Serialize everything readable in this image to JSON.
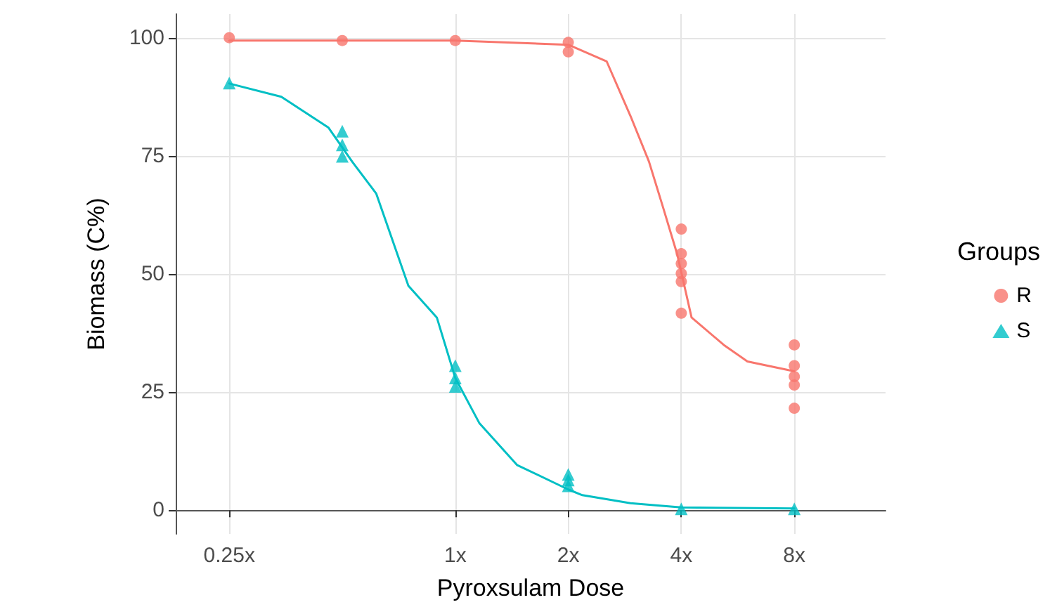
{
  "chart_data": {
    "type": "scatter",
    "xlabel": "Pyroxsulam Dose",
    "ylabel": "Biomass (C%)",
    "legend_title": "Groups",
    "legend": "right",
    "grid": true,
    "log": "x",
    "xlim": [
      0.18,
      14
    ],
    "xticks": [
      {
        "value": 0.25,
        "label": "0.25x"
      },
      {
        "value": 1,
        "label": "1x"
      },
      {
        "value": 2,
        "label": "2x"
      },
      {
        "value": 4,
        "label": "4x"
      },
      {
        "value": 8,
        "label": "8x"
      }
    ],
    "ylim": [
      -5,
      105
    ],
    "yticks": [
      0,
      25,
      50,
      75,
      100
    ],
    "series": [
      {
        "name": "R",
        "color": "#f8766d",
        "marker": "circle",
        "x": [
          0.25,
          0.5,
          1,
          2,
          2,
          4,
          4,
          4,
          4,
          4,
          4,
          8,
          8,
          8,
          8,
          8
        ],
        "values": [
          100,
          99.4,
          99.4,
          99,
          97,
          59.5,
          54.3,
          52.2,
          50.1,
          48.4,
          41.7,
          35,
          30.6,
          28.3,
          26.5,
          21.6
        ]
      },
      {
        "name": "S",
        "color": "#00bfc4",
        "marker": "triangle",
        "x": [
          0.25,
          0.5,
          0.5,
          0.5,
          1,
          1,
          1,
          2,
          2,
          2,
          4,
          8
        ],
        "values": [
          90.4,
          80.2,
          77.3,
          74.9,
          30.6,
          28,
          26.2,
          7.6,
          6.4,
          5.2,
          0.3,
          0.3
        ]
      },
      {
        "type": "line",
        "color": "#f8766d",
        "marker": "none",
        "x": [
          0.25,
          0.5,
          1,
          2,
          2.53,
          2.93,
          3.28,
          3.58,
          3.9,
          4.26,
          5.19,
          6,
          8
        ],
        "values": [
          99.4,
          99.4,
          99.4,
          98.5,
          95,
          83.4,
          73.8,
          64,
          54.2,
          40.8,
          35,
          31.5,
          29.4
        ]
      },
      {
        "type": "line",
        "color": "#00bfc4",
        "marker": "none",
        "x": [
          0.25,
          0.344,
          0.459,
          0.531,
          0.616,
          0.75,
          0.893,
          1,
          1.16,
          1.46,
          2,
          2.18,
          2.93,
          4,
          8
        ],
        "values": [
          90.3,
          87.5,
          81,
          73.8,
          67,
          47.5,
          40.8,
          28,
          18.4,
          9.6,
          4.4,
          3.2,
          1.5,
          0.6,
          0.4
        ]
      }
    ]
  }
}
